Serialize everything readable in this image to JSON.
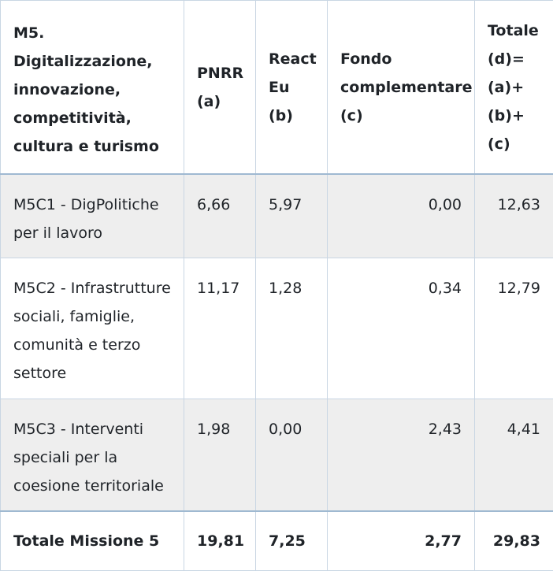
{
  "table": {
    "headers": {
      "mission": "M5. Digitalizzazione, innovazione, competitività, cultura e turismo",
      "pnrr": "PNRR (a)",
      "react_eu": "React Eu (b)",
      "fondo": "Fondo complementare (c)",
      "totale": "Totale (d)= (a)+ (b)+(c)"
    },
    "rows": [
      {
        "component": "M5C1 - DigPolitiche per il lavoro",
        "pnrr": "6,66",
        "react_eu": "5,97",
        "fondo": "0,00",
        "totale": "12,63"
      },
      {
        "component": "M5C2 - Infrastrutture sociali, famiglie, comunità e terzo settore",
        "pnrr": "11,17",
        "react_eu": "1,28",
        "fondo": "0,34",
        "totale": "12,79"
      },
      {
        "component": "M5C3 - Interventi speciali per la coesione territoriale",
        "pnrr": "1,98",
        "react_eu": "0,00",
        "fondo": "2,43",
        "totale": "4,41"
      }
    ],
    "footer": {
      "label": "Totale Missione 5",
      "pnrr": "19,81",
      "react_eu": "7,25",
      "fondo": "2,77",
      "totale": "29,83"
    }
  }
}
